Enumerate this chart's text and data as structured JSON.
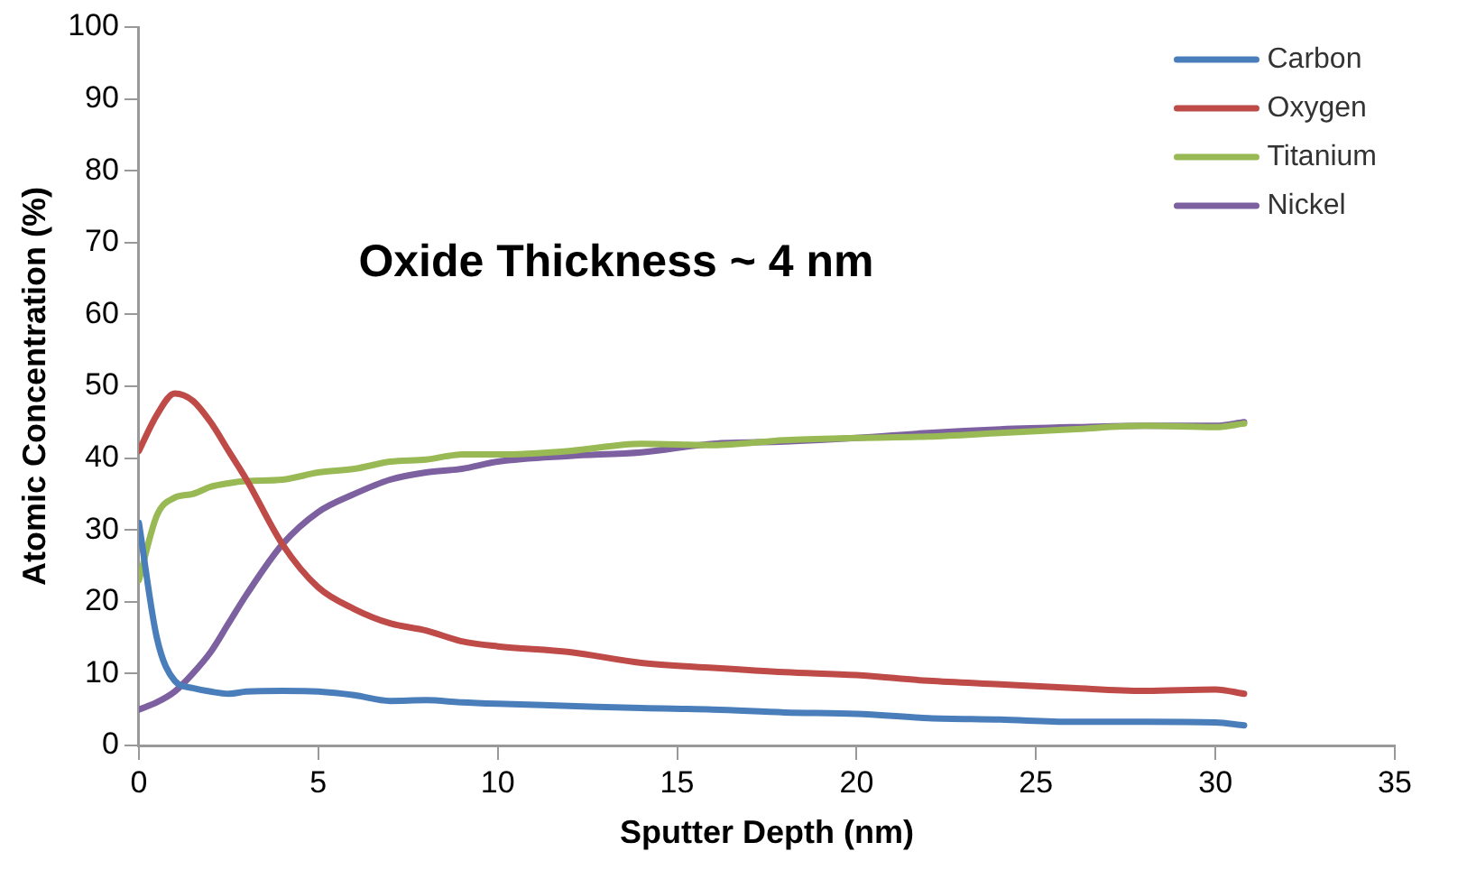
{
  "chart_data": {
    "type": "line",
    "xlabel": "Sputter Depth (nm)",
    "ylabel": "Atomic Concentration (%)",
    "annotations": [
      "Oxide Thickness ~ 4 nm"
    ],
    "x": [
      0,
      0.5,
      1,
      1.5,
      2,
      2.5,
      3,
      4,
      5,
      6,
      7,
      8,
      9,
      10,
      12,
      14,
      16,
      18,
      20,
      22,
      24,
      26,
      28,
      30,
      30.8
    ],
    "series": [
      {
        "name": "Carbon",
        "color": "#4a7ebb",
        "values": [
          31,
          15,
          9,
          8,
          7.5,
          7.2,
          7.5,
          7.6,
          7.5,
          7,
          6.2,
          6.3,
          6,
          5.8,
          5.5,
          5.2,
          5,
          4.6,
          4.4,
          3.8,
          3.6,
          3.3,
          3.3,
          3.2,
          2.8
        ]
      },
      {
        "name": "Oxygen",
        "color": "#be4b48",
        "values": [
          41,
          46,
          49,
          48,
          45,
          41,
          37,
          28,
          22,
          19,
          17,
          16,
          14.5,
          13.8,
          13,
          11.5,
          10.8,
          10.2,
          9.8,
          9,
          8.5,
          8,
          7.6,
          7.8,
          7.2
        ]
      },
      {
        "name": "Titanium",
        "color": "#98b954",
        "values": [
          23,
          32,
          34.5,
          35,
          36,
          36.5,
          36.8,
          37,
          38,
          38.5,
          39.5,
          39.8,
          40.5,
          40.5,
          41,
          42,
          41.8,
          42.5,
          42.8,
          43,
          43.5,
          44,
          44.5,
          44.3,
          44.8
        ]
      },
      {
        "name": "Nickel",
        "color": "#7d60a0",
        "values": [
          5,
          6,
          7.5,
          10,
          13,
          17,
          21,
          28,
          32.5,
          35,
          37,
          38,
          38.5,
          39.5,
          40.3,
          40.8,
          42,
          42.3,
          42.8,
          43.5,
          44,
          44.3,
          44.5,
          44.5,
          45
        ]
      }
    ],
    "xlim": [
      0,
      35
    ],
    "xticks": [
      0,
      5,
      10,
      15,
      20,
      25,
      30,
      35
    ],
    "ylim": [
      0,
      100
    ],
    "yticks": [
      0,
      10,
      20,
      30,
      40,
      50,
      60,
      70,
      80,
      90,
      100
    ],
    "grid": false,
    "legend": "top right",
    "marker": "none",
    "line_style": "solid"
  }
}
